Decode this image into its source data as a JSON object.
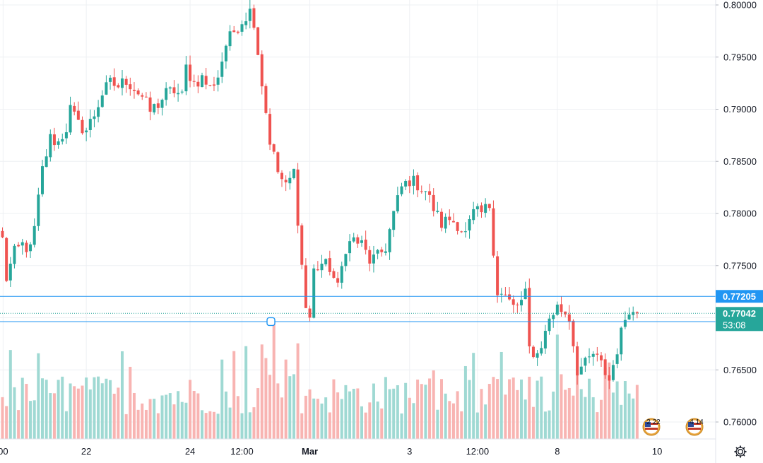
{
  "chart_data": {
    "type": "candlestick",
    "title": "",
    "colors": {
      "up": "#26a69a",
      "down": "#ef5350",
      "volume_up": "#9fd9d3",
      "volume_down": "#f8b4b2",
      "hline": "#2196f3",
      "grid": "#eef0f3",
      "last_price": "#26a69a",
      "dotted": "#26a69a"
    },
    "y_axis": {
      "range": [
        0.7588,
        0.8006
      ],
      "ticks": [
        "0.80000",
        "0.79500",
        "0.79000",
        "0.78500",
        "0.78000",
        "0.77500",
        "0.77000",
        "0.76500",
        "0.76000"
      ]
    },
    "x_axis": {
      "ticks": [
        {
          "label": "00",
          "pos": 0.15
        },
        {
          "label": "22",
          "pos": 21
        },
        {
          "label": "24",
          "pos": 47
        },
        {
          "label": "12:00",
          "pos": 60
        },
        {
          "label": "Mar",
          "pos": 77
        },
        {
          "label": "3",
          "pos": 102
        },
        {
          "label": "12:00",
          "pos": 119
        },
        {
          "label": "8",
          "pos": 139
        },
        {
          "label": "10",
          "pos": 164
        }
      ],
      "bold": [
        "Mar"
      ]
    },
    "horizontal_lines": [
      {
        "price": "0.77205",
        "value": 0.77205
      },
      {
        "price": "0.76963",
        "value": 0.76963
      }
    ],
    "last_price": {
      "value": 0.77042,
      "label": "0.77042",
      "countdown": "53:08"
    },
    "events": [
      {
        "label": "2 22"
      },
      {
        "label": "4 14"
      }
    ],
    "path": [
      [
        0,
        0.7775
      ],
      [
        1,
        0.7738
      ],
      [
        3,
        0.7762
      ],
      [
        5,
        0.777
      ],
      [
        7,
        0.7765
      ],
      [
        8,
        0.7785
      ],
      [
        10,
        0.7842
      ],
      [
        12,
        0.7872
      ],
      [
        14,
        0.7868
      ],
      [
        16,
        0.7882
      ],
      [
        17,
        0.79
      ],
      [
        19,
        0.7885
      ],
      [
        21,
        0.788
      ],
      [
        23,
        0.7895
      ],
      [
        25,
        0.7915
      ],
      [
        27,
        0.7925
      ],
      [
        29,
        0.7922
      ],
      [
        31,
        0.7928
      ],
      [
        33,
        0.792
      ],
      [
        35,
        0.7912
      ],
      [
        37,
        0.7898
      ],
      [
        39,
        0.7905
      ],
      [
        41,
        0.7915
      ],
      [
        43,
        0.7918
      ],
      [
        45,
        0.7912
      ],
      [
        46,
        0.794
      ],
      [
        48,
        0.7925
      ],
      [
        50,
        0.793
      ],
      [
        52,
        0.792
      ],
      [
        54,
        0.7932
      ],
      [
        56,
        0.7962
      ],
      [
        58,
        0.7975
      ],
      [
        60,
        0.7985
      ],
      [
        62,
        0.7994
      ],
      [
        63,
        0.7985
      ],
      [
        65,
        0.7925
      ],
      [
        67,
        0.787
      ],
      [
        69,
        0.784
      ],
      [
        71,
        0.7825
      ],
      [
        73,
        0.784
      ],
      [
        75,
        0.775
      ],
      [
        76,
        0.771
      ],
      [
        77,
        0.77
      ],
      [
        78,
        0.7745
      ],
      [
        80,
        0.7752
      ],
      [
        82,
        0.7748
      ],
      [
        84,
        0.7728
      ],
      [
        86,
        0.7768
      ],
      [
        88,
        0.7775
      ],
      [
        90,
        0.777
      ],
      [
        92,
        0.7755
      ],
      [
        94,
        0.7758
      ],
      [
        96,
        0.7768
      ],
      [
        98,
        0.78
      ],
      [
        100,
        0.7825
      ],
      [
        102,
        0.7832
      ],
      [
        104,
        0.7828
      ],
      [
        106,
        0.7822
      ],
      [
        108,
        0.7805
      ],
      [
        110,
        0.779
      ],
      [
        112,
        0.7795
      ],
      [
        114,
        0.779
      ],
      [
        116,
        0.778
      ],
      [
        118,
        0.78
      ],
      [
        120,
        0.78
      ],
      [
        122,
        0.7808
      ],
      [
        124,
        0.7725
      ],
      [
        126,
        0.772
      ],
      [
        128,
        0.771
      ],
      [
        130,
        0.7715
      ],
      [
        131,
        0.7722
      ],
      [
        132,
        0.767
      ],
      [
        134,
        0.7665
      ],
      [
        136,
        0.7685
      ],
      [
        137,
        0.77
      ],
      [
        139,
        0.771
      ],
      [
        141,
        0.7705
      ],
      [
        142,
        0.77
      ],
      [
        144,
        0.765
      ],
      [
        146,
        0.7655
      ],
      [
        148,
        0.7665
      ],
      [
        150,
        0.7655
      ],
      [
        152,
        0.764
      ],
      [
        154,
        0.767
      ],
      [
        156,
        0.77
      ],
      [
        157,
        0.771
      ],
      [
        158,
        0.7704
      ]
    ]
  }
}
